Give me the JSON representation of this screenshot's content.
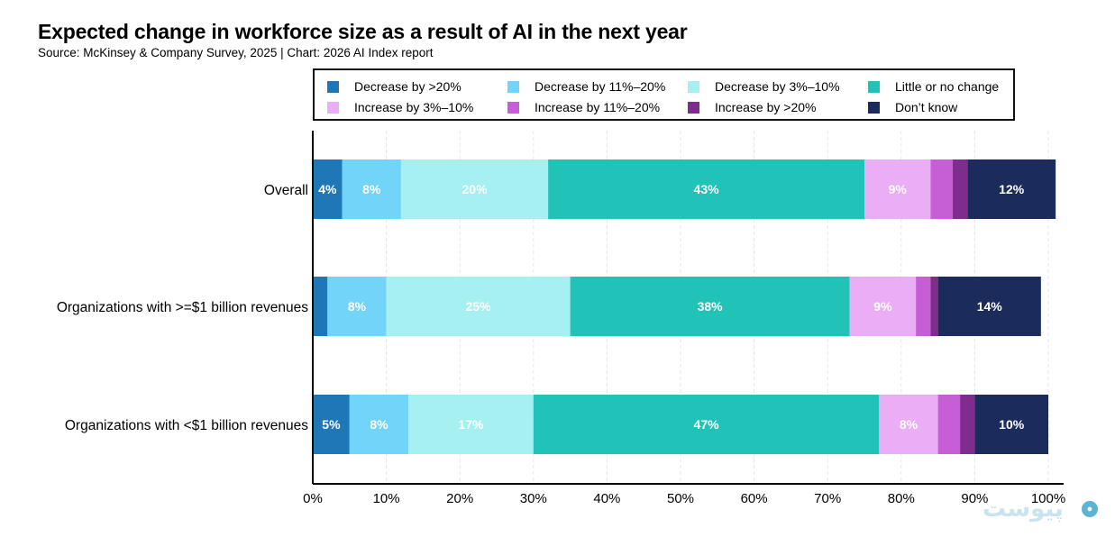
{
  "title": "Expected change in workforce size as a result of AI in the next year",
  "source": "Source: McKinsey & Company Survey, 2025 | Chart: 2026 AI Index report",
  "watermark": "پیوست",
  "chart_data": {
    "type": "bar",
    "orientation": "horizontal",
    "stacked": true,
    "categories": [
      "Overall",
      "Organizations with >=$1 billion revenues",
      "Organizations with <$1 billion revenues"
    ],
    "series": [
      {
        "name": "Decrease by >20%",
        "color": "#1f77b8",
        "values": [
          4,
          2,
          5
        ],
        "labels": [
          "4%",
          "",
          "5%"
        ]
      },
      {
        "name": "Decrease by 11%–20%",
        "color": "#73d4fa",
        "values": [
          8,
          8,
          8
        ],
        "labels": [
          "8%",
          "8%",
          "8%"
        ]
      },
      {
        "name": "Decrease by 3%–10%",
        "color": "#a6f0f2",
        "values": [
          20,
          25,
          17
        ],
        "labels": [
          "20%",
          "25%",
          "17%"
        ]
      },
      {
        "name": "Little or no change",
        "color": "#21c3b8",
        "values": [
          43,
          38,
          47
        ],
        "labels": [
          "43%",
          "38%",
          "47%"
        ]
      },
      {
        "name": "Increase by 3%–10%",
        "color": "#ebaef6",
        "values": [
          9,
          9,
          8
        ],
        "labels": [
          "9%",
          "9%",
          "8%"
        ]
      },
      {
        "name": "Increase by 11%–20%",
        "color": "#c65ed6",
        "values": [
          3,
          2,
          3
        ],
        "labels": [
          "",
          "",
          ""
        ]
      },
      {
        "name": "Increase by >20%",
        "color": "#7e2c8e",
        "values": [
          2,
          1,
          2
        ],
        "labels": [
          "",
          "",
          ""
        ]
      },
      {
        "name": "Don’t know",
        "color": "#1b2c5c",
        "values": [
          12,
          14,
          10
        ],
        "labels": [
          "12%",
          "14%",
          "10%"
        ]
      }
    ],
    "xlim": [
      0,
      100
    ],
    "xticks": [
      "0%",
      "10%",
      "20%",
      "30%",
      "40%",
      "50%",
      "60%",
      "70%",
      "80%",
      "90%",
      "100%"
    ],
    "xlabel": "",
    "ylabel": "",
    "grid": true,
    "legend": "top"
  }
}
